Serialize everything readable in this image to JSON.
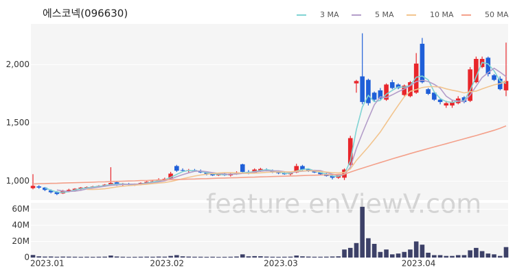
{
  "chart_data": {
    "type": "candlestick",
    "title": "에스코넥(096630)",
    "watermark": "feature.enViewV.com",
    "categories": [
      "2023.01",
      null,
      null,
      null,
      null,
      null,
      null,
      null,
      null,
      null,
      null,
      null,
      null,
      null,
      null,
      null,
      null,
      null,
      null,
      null,
      "2023.02",
      null,
      null,
      null,
      null,
      null,
      null,
      null,
      null,
      null,
      null,
      null,
      null,
      null,
      null,
      null,
      null,
      null,
      null,
      "2023.03",
      null,
      null,
      null,
      null,
      null,
      null,
      null,
      null,
      null,
      null,
      null,
      null,
      null,
      null,
      null,
      null,
      null,
      null,
      null,
      null,
      null,
      null,
      "2023.04",
      null,
      null,
      null,
      null,
      null,
      null,
      null,
      null,
      null,
      null,
      null,
      null,
      null,
      null,
      null,
      null,
      null
    ],
    "open": [
      940,
      955,
      945,
      920,
      905,
      895,
      915,
      915,
      935,
      945,
      950,
      955,
      960,
      965,
      990,
      970,
      975,
      970,
      975,
      985,
      995,
      1000,
      1015,
      1020,
      1130,
      1095,
      1090,
      1095,
      1085,
      1075,
      1060,
      1050,
      1065,
      1050,
      1065,
      1145,
      1080,
      1070,
      1090,
      1100,
      1090,
      1075,
      1070,
      1060,
      1075,
      1130,
      1100,
      1085,
      1075,
      1060,
      1045,
      1030,
      1030,
      1140,
      1840,
      1900,
      1870,
      1760,
      1780,
      1700,
      1850,
      1830,
      1740,
      1730,
      1760,
      2180,
      1790,
      1760,
      1700,
      1650,
      1650,
      1670,
      1720,
      1690,
      1850,
      1980,
      2060,
      1910,
      1880,
      1780
    ],
    "high": [
      1060,
      965,
      950,
      930,
      915,
      925,
      935,
      940,
      950,
      955,
      960,
      965,
      975,
      1120,
      995,
      985,
      985,
      980,
      990,
      1000,
      1010,
      1025,
      1030,
      1080,
      1140,
      1110,
      1105,
      1105,
      1100,
      1085,
      1075,
      1070,
      1075,
      1070,
      1085,
      1150,
      1095,
      1110,
      1115,
      1110,
      1100,
      1085,
      1080,
      1075,
      1150,
      1140,
      1110,
      1095,
      1080,
      1070,
      1055,
      1060,
      1110,
      1390,
      1870,
      2270,
      1880,
      1770,
      1800,
      1840,
      1870,
      1840,
      1830,
      1860,
      2100,
      2230,
      1800,
      1770,
      1710,
      1690,
      1700,
      1730,
      1730,
      1980,
      2070,
      2070,
      2070,
      1920,
      1900,
      2190
    ],
    "low": [
      930,
      935,
      915,
      895,
      880,
      890,
      905,
      910,
      925,
      935,
      940,
      945,
      955,
      960,
      960,
      960,
      965,
      960,
      965,
      975,
      985,
      995,
      1005,
      1015,
      1080,
      1080,
      1075,
      1080,
      1070,
      1050,
      1045,
      1045,
      1045,
      1040,
      1055,
      1070,
      1060,
      1065,
      1080,
      1085,
      1070,
      1060,
      1055,
      1050,
      1070,
      1090,
      1080,
      1070,
      1050,
      1040,
      1015,
      1020,
      1010,
      1130,
      1760,
      1660,
      1650,
      1680,
      1700,
      1690,
      1790,
      1790,
      1730,
      1720,
      1750,
      1840,
      1740,
      1690,
      1660,
      1630,
      1630,
      1660,
      1670,
      1680,
      1840,
      1970,
      1900,
      1860,
      1780,
      1730
    ],
    "close": [
      960,
      945,
      925,
      905,
      890,
      915,
      925,
      935,
      945,
      950,
      955,
      960,
      970,
      985,
      970,
      975,
      970,
      975,
      985,
      995,
      1000,
      1015,
      1020,
      1065,
      1090,
      1090,
      1095,
      1085,
      1075,
      1060,
      1050,
      1065,
      1050,
      1065,
      1075,
      1080,
      1070,
      1100,
      1105,
      1095,
      1075,
      1070,
      1060,
      1070,
      1130,
      1100,
      1090,
      1075,
      1060,
      1045,
      1030,
      1050,
      1100,
      1370,
      1860,
      1680,
      1670,
      1700,
      1710,
      1830,
      1800,
      1800,
      1820,
      1850,
      2010,
      1850,
      1750,
      1700,
      1680,
      1670,
      1680,
      1710,
      1680,
      1960,
      2050,
      2050,
      1920,
      1870,
      1790,
      1860
    ],
    "up_color": "#e8262b",
    "down_color": "#1f5fd8",
    "ylim": [
      850,
      2350
    ],
    "yticks": [
      {
        "value": 1000,
        "label": "1,000"
      },
      {
        "value": 1500,
        "label": "1,500"
      },
      {
        "value": 2000,
        "label": "2,000"
      }
    ],
    "grid": true,
    "series": [
      {
        "name": "3 MA",
        "color": "#7fd3d3",
        "values": [
          null,
          null,
          943,
          923,
          907,
          903,
          910,
          925,
          935,
          943,
          950,
          955,
          962,
          972,
          975,
          977,
          972,
          973,
          977,
          985,
          993,
          1003,
          1012,
          1033,
          1058,
          1082,
          1092,
          1090,
          1085,
          1073,
          1062,
          1058,
          1055,
          1060,
          1063,
          1073,
          1075,
          1083,
          1092,
          1100,
          1092,
          1080,
          1068,
          1067,
          1087,
          1100,
          1107,
          1088,
          1075,
          1060,
          1045,
          1042,
          1060,
          1173,
          1443,
          1637,
          1737,
          1683,
          1693,
          1747,
          1780,
          1810,
          1807,
          1823,
          1893,
          1903,
          1870,
          1767,
          1710,
          1683,
          1677,
          1687,
          1690,
          1783,
          1897,
          2020,
          2007,
          1947,
          1860,
          1840
        ]
      },
      {
        "name": "5 MA",
        "color": "#b39dc9",
        "values": [
          null,
          null,
          null,
          null,
          925,
          916,
          912,
          914,
          922,
          934,
          942,
          949,
          956,
          964,
          968,
          972,
          974,
          975,
          975,
          980,
          985,
          994,
          1003,
          1019,
          1038,
          1056,
          1072,
          1085,
          1087,
          1081,
          1073,
          1067,
          1060,
          1058,
          1061,
          1067,
          1068,
          1078,
          1086,
          1090,
          1089,
          1089,
          1081,
          1074,
          1081,
          1086,
          1090,
          1093,
          1091,
          1074,
          1060,
          1052,
          1057,
          1119,
          1282,
          1412,
          1536,
          1656,
          1724,
          1718,
          1742,
          1768,
          1792,
          1820,
          1856,
          1866,
          1856,
          1832,
          1798,
          1730,
          1696,
          1688,
          1684,
          1740,
          1816,
          1890,
          1932,
          1970,
          1936,
          1898
        ]
      },
      {
        "name": "10 MA",
        "color": "#f2c48e",
        "values": [
          null,
          null,
          null,
          null,
          null,
          null,
          null,
          null,
          null,
          930,
          929,
          931,
          935,
          943,
          951,
          957,
          962,
          966,
          970,
          974,
          979,
          984,
          989,
          997,
          1009,
          1021,
          1033,
          1044,
          1053,
          1060,
          1065,
          1070,
          1073,
          1073,
          1071,
          1070,
          1068,
          1069,
          1072,
          1076,
          1078,
          1079,
          1080,
          1080,
          1086,
          1088,
          1090,
          1087,
          1083,
          1078,
          1073,
          1071,
          1075,
          1105,
          1178,
          1236,
          1294,
          1357,
          1422,
          1500,
          1577,
          1652,
          1724,
          1772,
          1787,
          1804,
          1812,
          1812,
          1809,
          1793,
          1781,
          1772,
          1758,
          1769,
          1773,
          1793,
          1810,
          1827,
          1838,
          1857
        ]
      },
      {
        "name": "50 MA",
        "color": "#f4a08a",
        "values": [
          976,
          978,
          979,
          981,
          982,
          984,
          986,
          987,
          989,
          990,
          992,
          994,
          995,
          997,
          998,
          1000,
          1002,
          1003,
          1005,
          1006,
          1008,
          1010,
          1011,
          1013,
          1014,
          1016,
          1018,
          1019,
          1021,
          1022,
          1024,
          1026,
          1027,
          1029,
          1030,
          1032,
          1034,
          1035,
          1037,
          1038,
          1040,
          1042,
          1043,
          1045,
          1046,
          1048,
          1050,
          1051,
          1053,
          1054,
          1056,
          1058,
          1060,
          1078,
          1095,
          1112,
          1128,
          1144,
          1160,
          1176,
          1192,
          1207,
          1222,
          1237,
          1252,
          1266,
          1280,
          1294,
          1308,
          1322,
          1336,
          1350,
          1364,
          1378,
          1392,
          1407,
          1422,
          1437,
          1455,
          1475
        ]
      }
    ],
    "volume": {
      "color": "#3d4168",
      "ylim": [
        0,
        68000000
      ],
      "yticks": [
        0,
        {
          "value": 20000000,
          "label": "20M"
        },
        {
          "value": 40000000,
          "label": "40M"
        },
        {
          "value": 60000000,
          "label": "60M"
        }
      ],
      "values": [
        3200000,
        1500000,
        1200000,
        1300000,
        1000000,
        1200000,
        1100000,
        1000000,
        900000,
        1000000,
        900000,
        1000000,
        1100000,
        2500000,
        1300000,
        1000000,
        800000,
        900000,
        1000000,
        1100000,
        1000000,
        1200000,
        1100000,
        2000000,
        3000000,
        1500000,
        1200000,
        1000000,
        1000000,
        900000,
        1000000,
        800000,
        900000,
        1000000,
        1300000,
        4000000,
        1500000,
        1800000,
        1600000,
        1200000,
        1000000,
        900000,
        1000000,
        1100000,
        2500000,
        1500000,
        1200000,
        1000000,
        1000000,
        1100000,
        1300000,
        1500000,
        10000000,
        12000000,
        18000000,
        63000000,
        24000000,
        17000000,
        7000000,
        10000000,
        4000000,
        5000000,
        7000000,
        10000000,
        20000000,
        16000000,
        6000000,
        3000000,
        3000000,
        2000000,
        2000000,
        3000000,
        3000000,
        9000000,
        12000000,
        8000000,
        5000000,
        4000000,
        2000000,
        13000000
      ]
    }
  }
}
